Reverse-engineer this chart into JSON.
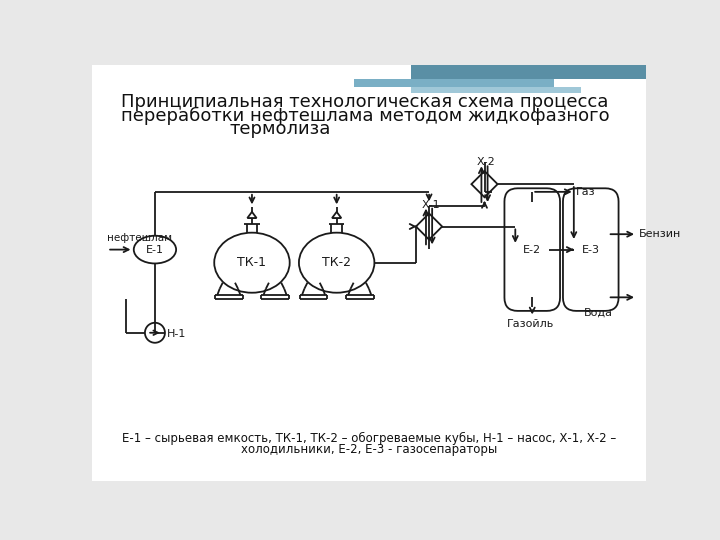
{
  "title_line1": "Принципиальная технологическая схема процесса",
  "title_line2": "переработки нефтешлама методом жидкофазного",
  "title_line3": "термолиза",
  "caption_line1": "Е-1 – сырьевая емкость, ТК-1, ТК-2 – обогреваемые кубы, Н-1 – насос, Х-1, Х-2 –",
  "caption_line2": "холодильники, Е-2, Е-3 - газосепараторы",
  "bg_color": "#e8e8e8",
  "slide_bg": "#ffffff",
  "line_color": "#1a1a1a",
  "fill_color": "#ffffff",
  "header_col1": "#5a8fa5",
  "header_col2": "#7aafc5",
  "header_col3": "#a0c8d8"
}
